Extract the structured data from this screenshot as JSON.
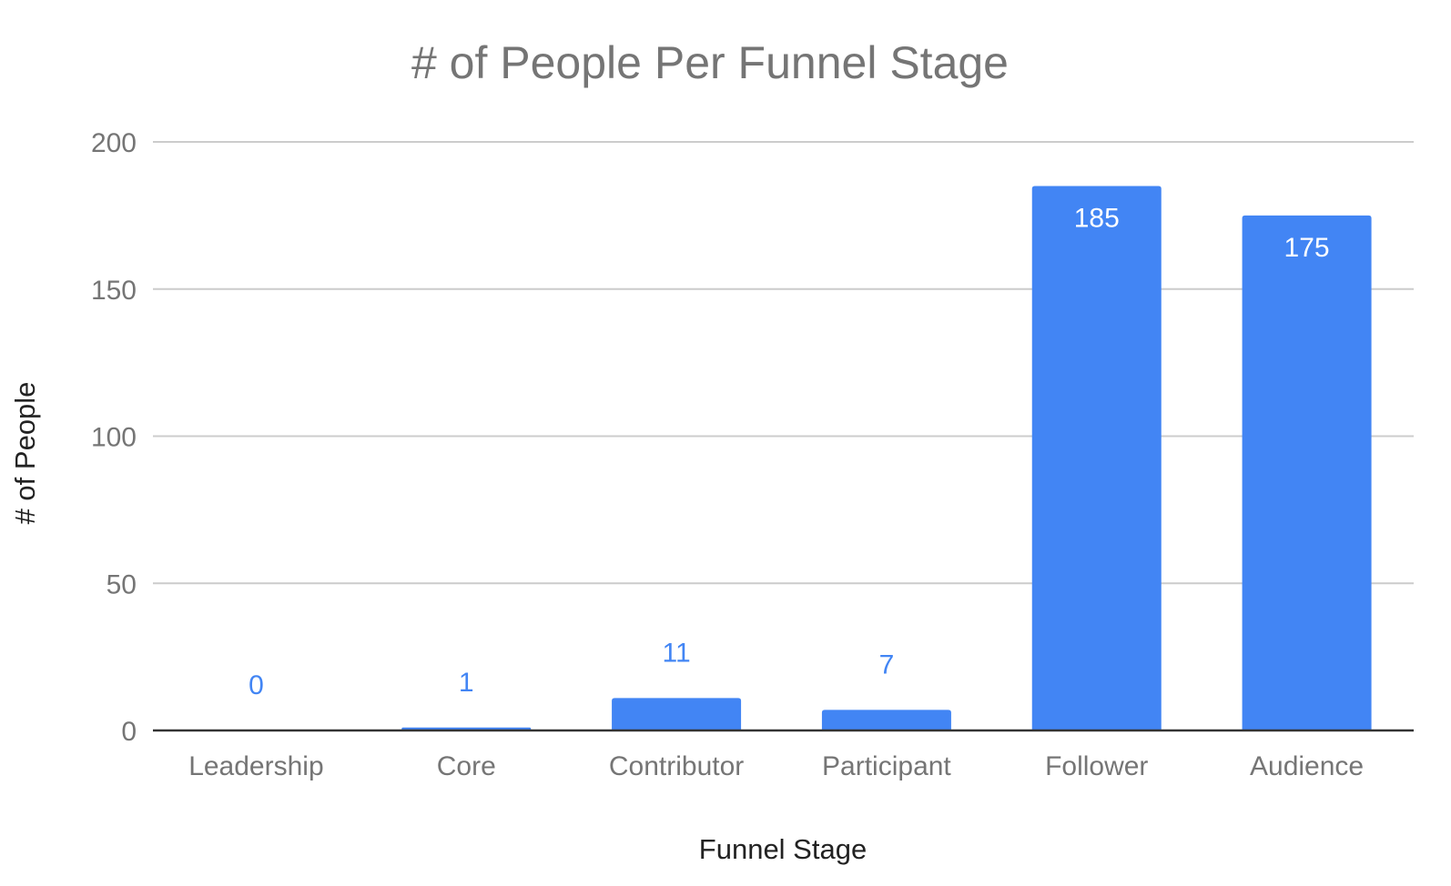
{
  "chart_data": {
    "type": "bar",
    "title": "# of People Per Funnel Stage",
    "xlabel": "Funnel Stage",
    "ylabel": "# of People",
    "categories": [
      "Leadership",
      "Core",
      "Contributor",
      "Participant",
      "Follower",
      "Audience"
    ],
    "values": [
      0,
      1,
      11,
      7,
      185,
      175
    ],
    "data_labels": [
      "0",
      "1",
      "11",
      "7",
      "185",
      "175"
    ],
    "ylim": [
      0,
      200
    ],
    "yticks": [
      0,
      50,
      100,
      150,
      200
    ],
    "ytick_labels": [
      "0",
      "50",
      "100",
      "150",
      "200"
    ],
    "grid": true,
    "legend": "none",
    "colors": {
      "bar": "#4285f4",
      "label_outside": "#4285f4",
      "label_inside": "#ffffff",
      "gridline": "#cccccc",
      "baseline": "#333333"
    }
  }
}
